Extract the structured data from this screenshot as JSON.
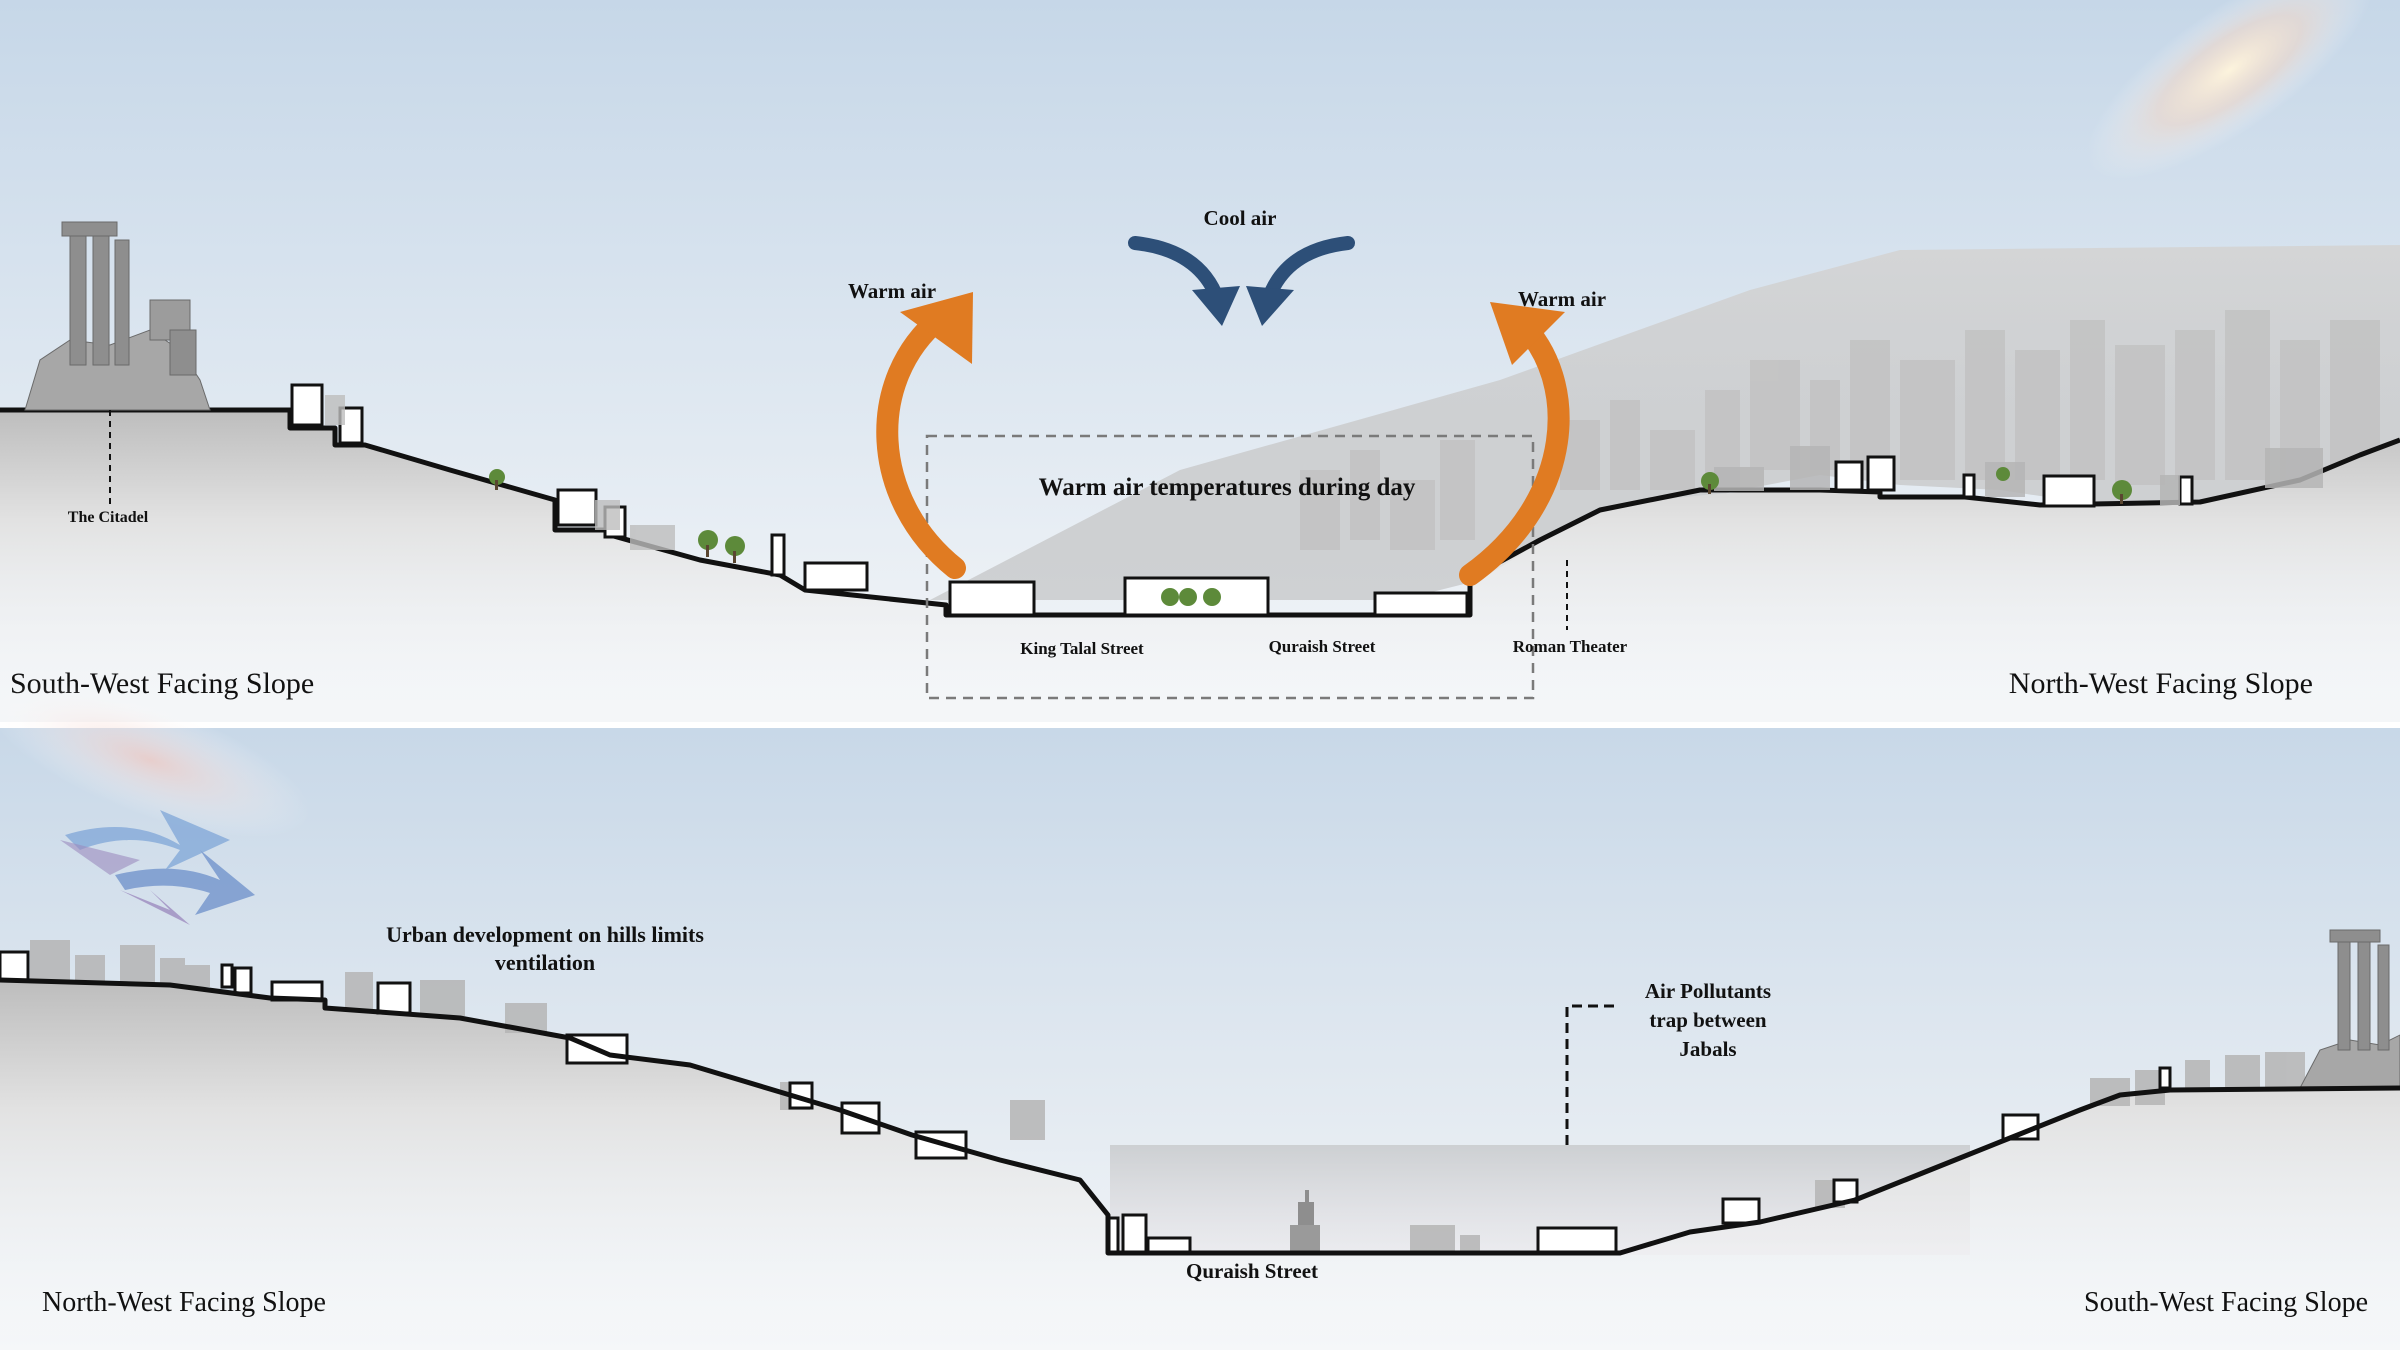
{
  "top_section": {
    "cool_air_label": "Cool air",
    "warm_air_left_label": "Warm air",
    "warm_air_right_label": "Warm air",
    "box_title": "Warm air temperatures during day",
    "citadel_label": "The Citadel",
    "king_talal_label": "King Talal Street",
    "quraish_label": "Quraish Street",
    "roman_theater_label": "Roman Theater",
    "slope_left_label": "South-West Facing Slope",
    "slope_right_label": "North-West Facing Slope"
  },
  "bottom_section": {
    "urban_line1": "Urban development on hills limits",
    "urban_line2": "ventilation",
    "pollutants_line1": "Air Pollutants",
    "pollutants_line2": "trap between",
    "pollutants_line3": "Jabals",
    "quraish_label": "Quraish Street",
    "slope_left_label": "North-West Facing Slope",
    "slope_right_label": "South-West Facing Slope"
  },
  "colors": {
    "sky_top": "#c9d9e9",
    "sky_bottom": "#f2f5f8",
    "warm_arrow": "#e07b22",
    "cool_arrow": "#2d4f78",
    "ground_line": "#111111",
    "rock": "#cfcfcf",
    "tree": "#5d8a3a"
  },
  "icons": {
    "citadel": "citadel-columns-icon",
    "tree": "tree-icon",
    "wind": "wind-arrows-icon"
  }
}
